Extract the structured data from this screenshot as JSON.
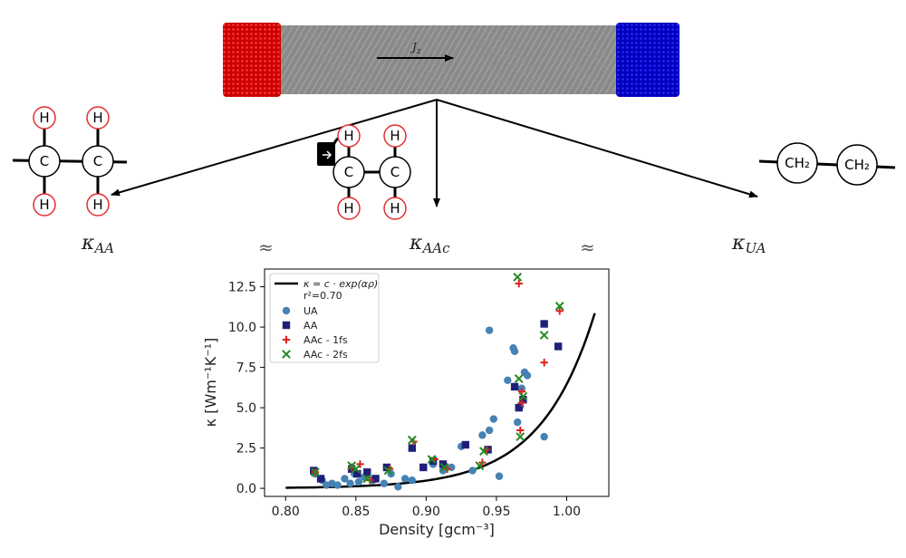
{
  "schematic": {
    "flux_label": "J",
    "flux_sub": "z",
    "kappa_symbol": "κ",
    "labels": [
      {
        "sub": "AA"
      },
      {
        "sub": "AAc"
      },
      {
        "sub": "UA"
      }
    ],
    "approx": "≈",
    "colors": {
      "hot": "#dd1111",
      "cold": "#1111cc",
      "bulk": "#8a8a8a",
      "h_ring": "#e03030"
    },
    "molecules": {
      "carbon": "C",
      "hydrogen": "H",
      "ch2": "CH₂"
    }
  },
  "chart_data": {
    "type": "scatter",
    "xlabel": "Density [gcm⁻³]",
    "ylabel": "κ [Wm⁻¹K⁻¹]",
    "xlim": [
      0.785,
      1.03
    ],
    "ylim": [
      -0.5,
      13.6
    ],
    "xticks": [
      "0.80",
      "0.85",
      "0.90",
      "0.95",
      "1.00"
    ],
    "yticks": [
      "0.0",
      "2.5",
      "5.0",
      "7.5",
      "10.0",
      "12.5"
    ],
    "legend_position": "top-left",
    "fit": {
      "label": "κ = c · exp(αρ)",
      "r2": "r²=0.70",
      "c": 3.3e-11,
      "alpha": 26.0,
      "x_range": [
        0.8,
        1.02
      ],
      "color": "#000000"
    },
    "series": [
      {
        "name": "UA",
        "marker": "circle",
        "color": "#4682b4",
        "x": [
          0.821,
          0.826,
          0.829,
          0.833,
          0.837,
          0.842,
          0.846,
          0.849,
          0.852,
          0.856,
          0.862,
          0.87,
          0.875,
          0.88,
          0.885,
          0.89,
          0.898,
          0.905,
          0.912,
          0.918,
          0.925,
          0.933,
          0.94,
          0.945,
          0.948,
          0.952,
          0.958,
          0.962,
          0.963,
          0.965,
          0.967,
          0.968,
          0.97,
          0.972,
          0.984,
          0.945
        ],
        "y": [
          0.9,
          0.5,
          0.2,
          0.3,
          0.2,
          0.6,
          0.3,
          0.9,
          0.4,
          0.7,
          0.5,
          0.3,
          0.9,
          0.1,
          0.6,
          0.5,
          1.3,
          1.5,
          1.1,
          1.3,
          2.6,
          1.1,
          3.3,
          3.6,
          4.3,
          0.75,
          6.7,
          8.7,
          8.5,
          4.1,
          5.1,
          6.2,
          7.2,
          7.0,
          3.2,
          9.8
        ]
      },
      {
        "name": "AA",
        "marker": "square",
        "color": "#1f1f7a",
        "x": [
          0.82,
          0.825,
          0.847,
          0.851,
          0.858,
          0.864,
          0.872,
          0.89,
          0.898,
          0.905,
          0.912,
          0.928,
          0.944,
          0.963,
          0.966,
          0.969,
          0.984,
          0.994
        ],
        "y": [
          1.1,
          0.6,
          1.2,
          0.9,
          1.0,
          0.6,
          1.3,
          2.5,
          1.3,
          1.7,
          1.5,
          2.7,
          2.4,
          6.3,
          5.0,
          5.5,
          10.2,
          8.8
        ]
      },
      {
        "name": "AAc - 1fs",
        "marker": "plus",
        "color": "#e0201c",
        "x": [
          0.821,
          0.847,
          0.853,
          0.86,
          0.874,
          0.891,
          0.906,
          0.915,
          0.94,
          0.943,
          0.966,
          0.967,
          0.968,
          0.968,
          0.984,
          0.995
        ],
        "y": [
          1.0,
          1.3,
          1.5,
          0.5,
          1.2,
          2.9,
          1.8,
          1.2,
          1.6,
          2.4,
          12.7,
          3.6,
          6.0,
          5.3,
          7.8,
          11.0
        ]
      },
      {
        "name": "AAc - 2fs",
        "marker": "x",
        "color": "#228b22",
        "x": [
          0.821,
          0.847,
          0.85,
          0.858,
          0.873,
          0.89,
          0.904,
          0.913,
          0.938,
          0.941,
          0.965,
          0.966,
          0.967,
          0.969,
          0.984,
          0.995
        ],
        "y": [
          1.0,
          1.4,
          1.2,
          0.6,
          1.1,
          3.0,
          1.8,
          1.3,
          1.4,
          2.3,
          13.1,
          6.8,
          3.2,
          5.7,
          9.5,
          11.3
        ]
      }
    ]
  }
}
